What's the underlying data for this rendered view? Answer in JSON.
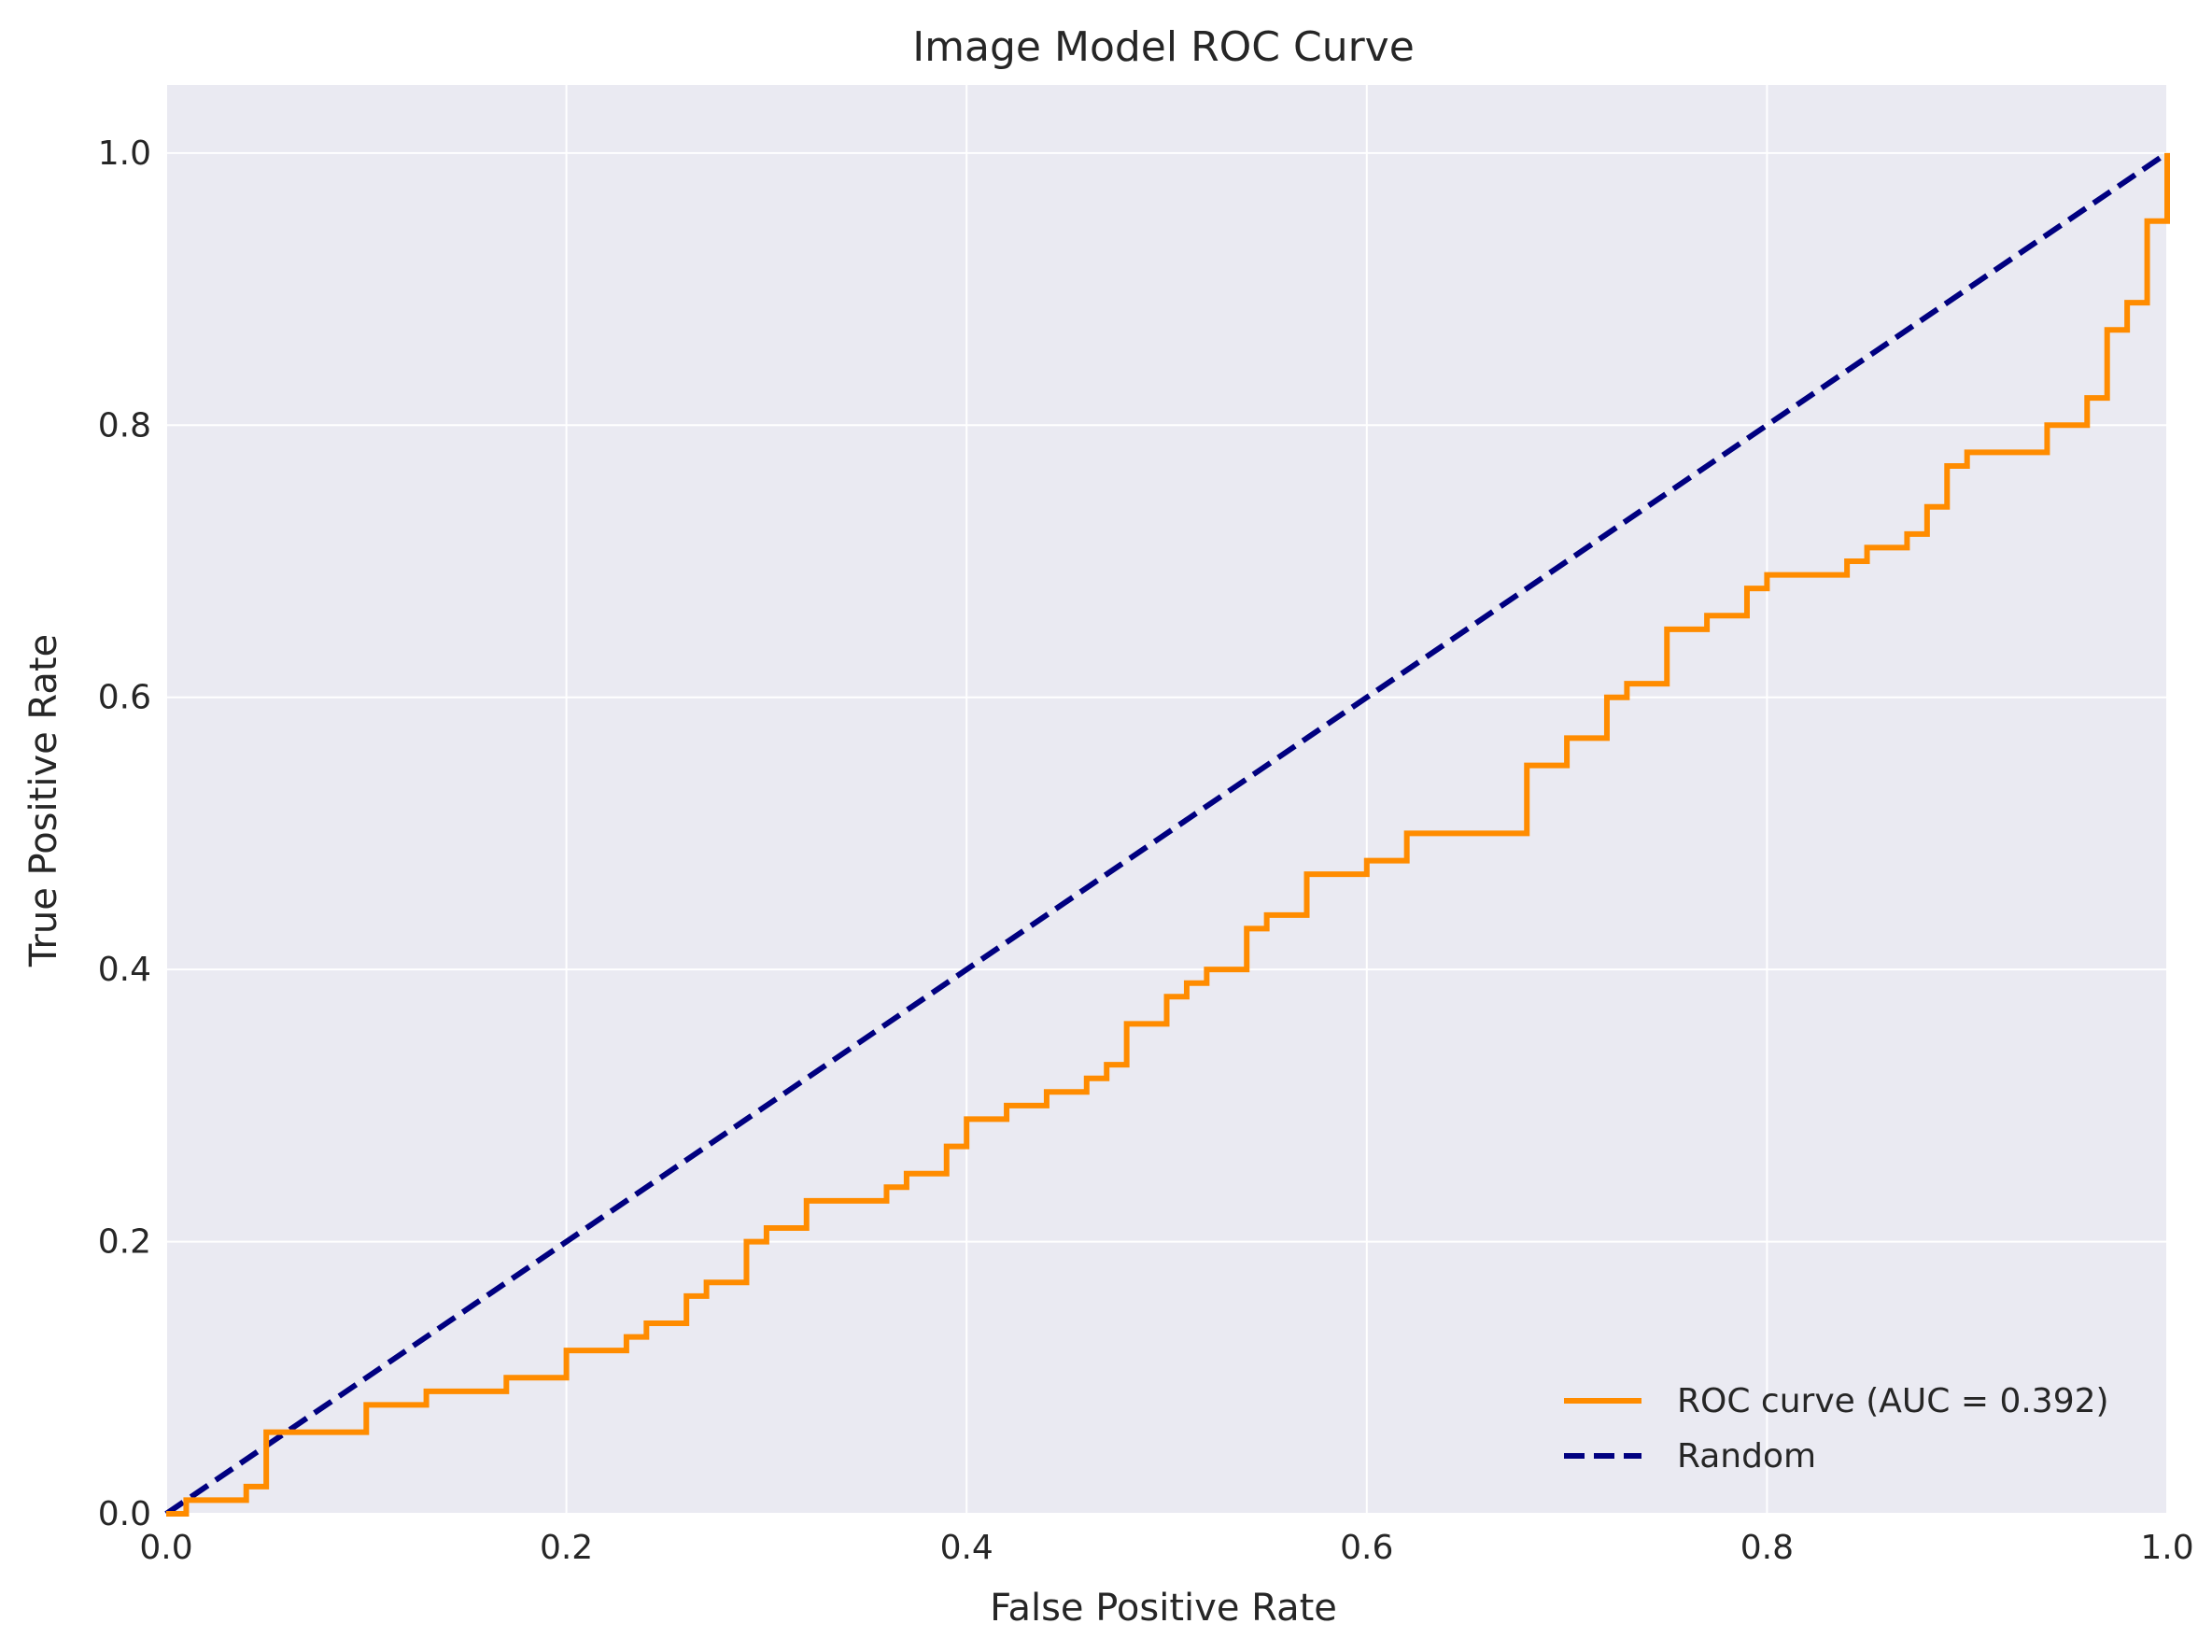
{
  "chart_data": {
    "type": "line",
    "title": "Image Model ROC Curve",
    "xlabel": "False Positive Rate",
    "ylabel": "True Positive Rate",
    "xlim": [
      0.0,
      1.0
    ],
    "ylim": [
      0.0,
      1.05
    ],
    "xticks": [
      0.0,
      0.2,
      0.4,
      0.6,
      0.8,
      1.0
    ],
    "yticks": [
      0.0,
      0.2,
      0.4,
      0.6,
      0.8,
      1.0
    ],
    "xtick_labels": [
      "0.0",
      "0.2",
      "0.4",
      "0.6",
      "0.8",
      "1.0"
    ],
    "ytick_labels": [
      "0.0",
      "0.2",
      "0.4",
      "0.6",
      "0.8",
      "1.0"
    ],
    "grid": true,
    "background": "#eaeaf2",
    "legend_position": "lower-right",
    "series": [
      {
        "name": "ROC curve (AUC = 0.392)",
        "color": "#ff8c00",
        "style": "solid",
        "x": [
          0.0,
          0.01,
          0.01,
          0.04,
          0.04,
          0.05,
          0.05,
          0.1,
          0.1,
          0.13,
          0.13,
          0.17,
          0.17,
          0.2,
          0.2,
          0.23,
          0.23,
          0.24,
          0.24,
          0.26,
          0.26,
          0.27,
          0.27,
          0.29,
          0.29,
          0.3,
          0.3,
          0.32,
          0.32,
          0.36,
          0.36,
          0.37,
          0.37,
          0.39,
          0.39,
          0.4,
          0.4,
          0.42,
          0.42,
          0.44,
          0.44,
          0.46,
          0.46,
          0.47,
          0.47,
          0.48,
          0.48,
          0.5,
          0.5,
          0.51,
          0.51,
          0.52,
          0.52,
          0.54,
          0.54,
          0.55,
          0.55,
          0.57,
          0.57,
          0.6,
          0.6,
          0.62,
          0.62,
          0.68,
          0.68,
          0.7,
          0.7,
          0.72,
          0.72,
          0.73,
          0.73,
          0.75,
          0.75,
          0.77,
          0.77,
          0.79,
          0.79,
          0.8,
          0.8,
          0.84,
          0.84,
          0.85,
          0.85,
          0.87,
          0.87,
          0.88,
          0.88,
          0.89,
          0.89,
          0.9,
          0.9,
          0.94,
          0.94,
          0.96,
          0.96,
          0.97,
          0.97,
          0.98,
          0.98,
          0.99,
          0.99,
          1.0,
          1.0
        ],
        "y": [
          0.0,
          0.0,
          0.01,
          0.01,
          0.02,
          0.02,
          0.06,
          0.06,
          0.08,
          0.08,
          0.09,
          0.09,
          0.1,
          0.1,
          0.12,
          0.12,
          0.13,
          0.13,
          0.14,
          0.14,
          0.16,
          0.16,
          0.17,
          0.17,
          0.2,
          0.2,
          0.21,
          0.21,
          0.23,
          0.23,
          0.24,
          0.24,
          0.25,
          0.25,
          0.27,
          0.27,
          0.29,
          0.29,
          0.3,
          0.3,
          0.31,
          0.31,
          0.32,
          0.32,
          0.33,
          0.33,
          0.36,
          0.36,
          0.38,
          0.38,
          0.39,
          0.39,
          0.4,
          0.4,
          0.43,
          0.43,
          0.44,
          0.44,
          0.47,
          0.47,
          0.48,
          0.48,
          0.5,
          0.5,
          0.55,
          0.55,
          0.57,
          0.57,
          0.6,
          0.6,
          0.61,
          0.61,
          0.65,
          0.65,
          0.66,
          0.66,
          0.68,
          0.68,
          0.69,
          0.69,
          0.7,
          0.7,
          0.71,
          0.71,
          0.72,
          0.72,
          0.74,
          0.74,
          0.77,
          0.77,
          0.78,
          0.78,
          0.8,
          0.8,
          0.82,
          0.82,
          0.87,
          0.87,
          0.89,
          0.89,
          0.95,
          0.95,
          1.0
        ]
      },
      {
        "name": "Random",
        "color": "#000080",
        "style": "dashed",
        "x": [
          0.0,
          1.0
        ],
        "y": [
          0.0,
          1.0
        ]
      }
    ]
  }
}
